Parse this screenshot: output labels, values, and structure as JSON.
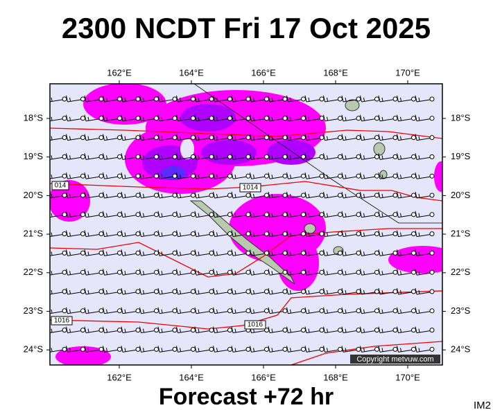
{
  "header": {
    "title": "2300 NCDT Fri 17 Oct 2025"
  },
  "map": {
    "lon_labels": [
      "162°E",
      "164°E",
      "166°E",
      "168°E",
      "170°E"
    ],
    "lat_labels": [
      "18°S",
      "19°S",
      "20°S",
      "21°S",
      "22°S",
      "23°S",
      "24°S"
    ],
    "isobar_labels": [
      "014",
      "1014",
      "1016",
      "1016"
    ],
    "copyright": "Copyright metvuw.com"
  },
  "footer": {
    "forecast": "Forecast +72 hr",
    "image_id": "IM2"
  }
}
